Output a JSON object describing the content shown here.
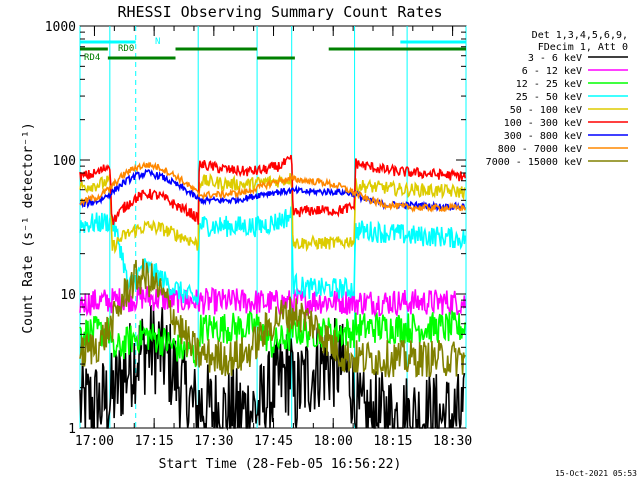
{
  "chart_data": {
    "type": "line",
    "title": "RHESSI Observing Summary Count Rates",
    "xlabel": "Start Time (28-Feb-05 16:56:22)",
    "ylabel": "Count Rate (s⁻¹ detector⁻¹)",
    "y_scale": "log",
    "ylim": [
      1,
      1000
    ],
    "x_unit": "minutes since 16:56:22",
    "xlim": [
      0,
      97
    ],
    "x_tick_labels": [
      "17:00",
      "17:15",
      "17:30",
      "17:45",
      "18:00",
      "18:15",
      "18:30"
    ],
    "y_tick_labels": [
      "1",
      "10",
      "100",
      "1000"
    ],
    "legend_header": [
      "Det 1,3,4,5,6,9,",
      "FDecim 1, Att 0"
    ],
    "legend_position": "right",
    "footer_date": "15-Oct-2021 05:53",
    "series": [
      {
        "name": "3 - 6 keV",
        "color": "#000000",
        "x": [
          0,
          5,
          8,
          10,
          12,
          14,
          16,
          18,
          20,
          22,
          24,
          26,
          28,
          29.7,
          30,
          32,
          35,
          40,
          45,
          48,
          52,
          53.2,
          53.5,
          56,
          60,
          65,
          68,
          69,
          69.2,
          70,
          75,
          80,
          85,
          90,
          95,
          97
        ],
        "y": [
          1.5,
          1.5,
          1.7,
          2.2,
          2.8,
          3.4,
          3.8,
          4.0,
          3.8,
          3.2,
          2.5,
          1.9,
          1.5,
          1.3,
          1.5,
          1.4,
          1.3,
          1.3,
          1.4,
          1.8,
          2.6,
          2.8,
          1.6,
          2.2,
          3.0,
          3.0,
          2.4,
          1.6,
          1.2,
          1.2,
          1.2,
          1.2,
          1.2,
          1.2,
          1.2,
          1.2
        ]
      },
      {
        "name": "6 - 12 keV",
        "color": "#ff00ff",
        "x": [
          0,
          10,
          16,
          20,
          30,
          40,
          50,
          60,
          70,
          80,
          90,
          97
        ],
        "y": [
          8.6,
          9.0,
          9.5,
          9.2,
          8.8,
          8.8,
          8.6,
          8.9,
          8.7,
          8.7,
          8.7,
          8.7
        ]
      },
      {
        "name": "12 - 25 keV",
        "color": "#00ff00",
        "x": [
          0,
          7.5,
          8,
          10,
          13,
          16,
          20,
          24,
          28,
          29.7,
          30,
          34,
          38,
          42,
          45,
          48,
          52,
          53.2,
          53.5,
          57,
          61,
          65,
          68,
          69,
          69.2,
          75,
          80,
          85,
          90,
          95,
          97
        ],
        "y": [
          5.2,
          5.2,
          3.6,
          4.0,
          4.6,
          5.0,
          4.6,
          4.0,
          3.6,
          3.5,
          5.5,
          5.6,
          5.6,
          5.6,
          5.8,
          4.2,
          4.7,
          4.8,
          5.4,
          5.2,
          5.2,
          5.2,
          5.2,
          5.2,
          5.6,
          5.6,
          5.6,
          5.6,
          5.6,
          5.6,
          5.6
        ]
      },
      {
        "name": "25 - 50 keV",
        "color": "#00ffff",
        "x": [
          0,
          5,
          7.5,
          8,
          12,
          14,
          16,
          18,
          22,
          26,
          29.7,
          30,
          35,
          40,
          45,
          50,
          53.2,
          53.5,
          57,
          62,
          68,
          69,
          69.2,
          75,
          80,
          85,
          90,
          95,
          97
        ],
        "y": [
          33,
          34,
          35,
          35,
          11,
          13,
          16,
          15,
          12,
          10,
          9,
          33,
          32,
          32,
          32,
          35,
          39,
          12,
          11,
          11,
          11,
          11,
          30,
          29,
          28,
          27,
          27,
          26,
          26
        ]
      },
      {
        "name": "50 - 100 keV",
        "color": "#ddcc00",
        "x": [
          0,
          5,
          7.5,
          8,
          11,
          14,
          17,
          20,
          24,
          28,
          29.7,
          30,
          34,
          38,
          42,
          46,
          50,
          53.2,
          53.5,
          57,
          61,
          65,
          68,
          69,
          69.2,
          73,
          77,
          81,
          85,
          90,
          95,
          97
        ],
        "y": [
          63,
          66,
          70,
          22,
          27,
          30,
          32,
          31,
          28,
          25,
          23,
          70,
          68,
          66,
          66,
          68,
          70,
          73,
          24,
          24,
          24,
          24,
          25,
          25,
          65,
          63,
          62,
          60,
          60,
          59,
          58,
          58
        ]
      },
      {
        "name": "100 - 300 keV",
        "color": "#ff0000",
        "x": [
          0,
          3,
          5,
          7.5,
          8,
          11,
          14,
          17,
          20,
          24,
          28,
          29.7,
          30,
          34,
          38,
          42,
          46,
          50,
          53.2,
          53.5,
          57,
          61,
          65,
          68,
          69,
          69.2,
          72,
          76,
          80,
          85,
          90,
          95,
          97
        ],
        "y": [
          75,
          78,
          82,
          92,
          34,
          44,
          52,
          56,
          54,
          46,
          40,
          36,
          93,
          88,
          84,
          82,
          84,
          90,
          100,
          40,
          42,
          42,
          42,
          44,
          44,
          95,
          90,
          85,
          82,
          80,
          78,
          76,
          76
        ]
      },
      {
        "name": "300 - 800 keV",
        "color": "#0000ff",
        "x": [
          0,
          5,
          8,
          11,
          14,
          17,
          20,
          24,
          28,
          30,
          34,
          38,
          42,
          46,
          50,
          53.5,
          57,
          61,
          65,
          69,
          72,
          76,
          80,
          85,
          90,
          95,
          97
        ],
        "y": [
          46,
          50,
          57,
          68,
          76,
          80,
          76,
          66,
          56,
          50,
          50,
          50,
          52,
          56,
          58,
          59,
          58,
          58,
          58,
          56,
          50,
          47,
          46,
          46,
          45,
          45,
          45
        ]
      },
      {
        "name": "800 - 7000 keV",
        "color": "#ff8800",
        "x": [
          0,
          5,
          8,
          11,
          14,
          17,
          20,
          24,
          28,
          30,
          34,
          38,
          42,
          46,
          50,
          53.5,
          57,
          61,
          65,
          69,
          72,
          76,
          80,
          85,
          90,
          95,
          97
        ],
        "y": [
          48,
          54,
          63,
          78,
          88,
          92,
          88,
          76,
          62,
          55,
          55,
          56,
          58,
          64,
          70,
          72,
          70,
          68,
          64,
          57,
          51,
          47,
          45,
          44,
          44,
          44,
          44
        ]
      },
      {
        "name": "7000 - 15000 keV",
        "color": "#808000",
        "x": [
          0,
          5,
          8,
          10,
          12,
          14,
          16,
          18,
          20,
          22,
          24,
          26,
          28,
          30,
          34,
          38,
          42,
          46,
          50,
          54,
          58,
          62,
          66,
          70,
          75,
          80,
          85,
          90,
          95,
          97
        ],
        "y": [
          3.5,
          4.3,
          5.8,
          8,
          11,
          13,
          13.5,
          12.5,
          10.5,
          8.5,
          6.5,
          5,
          4,
          3.5,
          3.4,
          3.3,
          3.6,
          5,
          6.8,
          7.3,
          6.2,
          4.6,
          3.5,
          3.3,
          3.3,
          3.3,
          3.3,
          3.3,
          3.3,
          3.3
        ]
      }
    ],
    "flag_bars": [
      {
        "label": "N",
        "color": "#00ffff",
        "rows": [
          {
            "start": 0,
            "end": 14
          },
          {
            "start": 80.5,
            "end": 97
          }
        ]
      },
      {
        "label": "RD0",
        "color": "#008000",
        "rows": [
          {
            "start": 0,
            "end": 7
          },
          {
            "start": 24,
            "end": 44.5
          },
          {
            "start": 62.5,
            "end": 97
          }
        ]
      },
      {
        "label": "RD4",
        "color": "#008000",
        "rows": [
          {
            "start": 7,
            "end": 24
          },
          {
            "start": 44.5,
            "end": 54
          }
        ]
      }
    ],
    "vertical_lines": {
      "solid": [
        0,
        7.5,
        29.7,
        44.5,
        53.2,
        69,
        82.2,
        97
      ],
      "dashed": [
        14,
        97
      ]
    },
    "grid": false,
    "background": "#ffffff"
  }
}
